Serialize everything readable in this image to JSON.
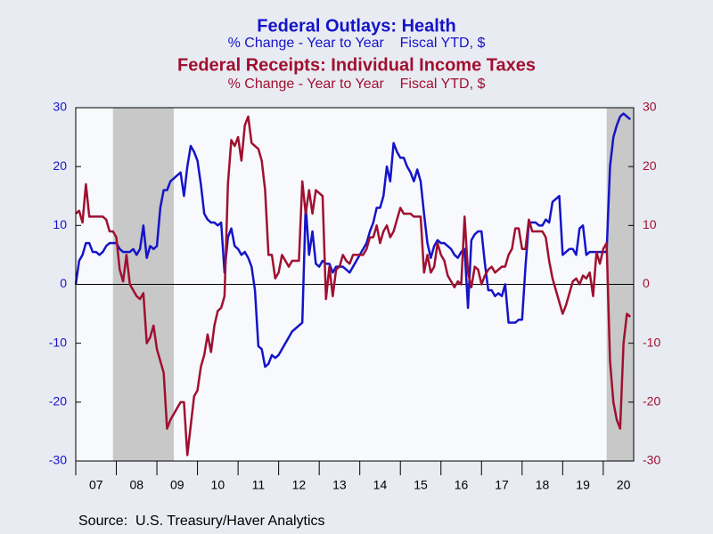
{
  "chart_data": {
    "type": "line",
    "series": [
      {
        "name": "Federal Outlays: Health",
        "units": "% Change - Year to Year    Fiscal YTD, $",
        "color": "#1414c8",
        "axis": "y",
        "values": [
          0,
          4,
          5,
          7,
          7,
          5.5,
          5.5,
          5,
          5.5,
          6.5,
          7,
          7,
          7,
          6,
          5.5,
          5.5,
          5.5,
          6,
          5,
          6,
          10,
          4.5,
          6.5,
          6,
          6.5,
          13,
          16,
          16,
          17.5,
          18,
          18.5,
          19,
          15,
          20,
          23.5,
          22.5,
          21,
          17,
          12,
          11,
          10.5,
          10.5,
          10,
          10.5,
          2,
          8,
          9.5,
          6.5,
          6,
          5,
          5.5,
          4.5,
          3,
          -1,
          -10.5,
          -11,
          -14,
          -13.5,
          -12,
          -12.5,
          -12,
          -11,
          -10,
          -9,
          -8,
          -7.5,
          -7,
          -6.5,
          13.5,
          5,
          9,
          3.5,
          3,
          4,
          3.5,
          3.5,
          2,
          3,
          3,
          3,
          2.5,
          2,
          3,
          4,
          5,
          6,
          7,
          9,
          10.5,
          13,
          13,
          15,
          20,
          17.5,
          24,
          22.5,
          21.5,
          21.5,
          20,
          19,
          17.5,
          19.5,
          17.5,
          12,
          7,
          4.5,
          6.5,
          7.5,
          7,
          7,
          6.5,
          6,
          5,
          4.5,
          5.5,
          6,
          -4,
          7.5,
          8.5,
          9,
          9,
          3.5,
          -1,
          -1,
          -2,
          -1.5,
          -2,
          0,
          -6.5,
          -6.5,
          -6.5,
          -6,
          -6,
          3,
          10.5,
          10.5,
          10.5,
          10,
          10,
          11,
          10.5,
          14,
          14.5,
          15,
          5,
          5.5,
          6,
          6,
          5,
          9.5,
          10,
          5,
          5.5,
          5.5,
          5.5,
          5.5,
          5.5,
          5.5,
          20,
          25,
          27,
          28.5,
          29,
          28.5,
          28
        ]
      },
      {
        "name": "Federal Receipts: Individual Income Taxes",
        "units": "% Change - Year to Year    Fiscal YTD, $",
        "color": "#a01030",
        "axis": "y2",
        "values": [
          12,
          12.5,
          10.5,
          17,
          11.5,
          11.5,
          11.5,
          11.5,
          11.5,
          11,
          9,
          9,
          8,
          2.5,
          0.5,
          5,
          0,
          -1,
          -2,
          -2.5,
          -1.5,
          -10,
          -9,
          -7,
          -11,
          -13,
          -15,
          -24.5,
          -23,
          -22,
          -21,
          -20,
          -20,
          -29,
          -24,
          -19,
          -18,
          -14,
          -12,
          -8.5,
          -11.5,
          -7,
          -4.5,
          -4,
          -2,
          17,
          24.5,
          23.5,
          25,
          21,
          27,
          28.5,
          24,
          23.5,
          23,
          21,
          16,
          5,
          5,
          1,
          2,
          5,
          4,
          3,
          4,
          4,
          4,
          17.5,
          12,
          16,
          12,
          16,
          15.5,
          15,
          -2.5,
          3,
          -2,
          2.5,
          3,
          5,
          4,
          3.5,
          5,
          5,
          5,
          5,
          6,
          8,
          8,
          10,
          7,
          9,
          10,
          8,
          9,
          11,
          13,
          12,
          12,
          12,
          11.5,
          11.5,
          11.5,
          2,
          5,
          2,
          3,
          7,
          5,
          4,
          1.5,
          0.5,
          -0.5,
          0.5,
          0,
          11.5,
          2,
          -0.5,
          3,
          2.5,
          0,
          1.5,
          2.5,
          3,
          2,
          2.5,
          3,
          3,
          5,
          6,
          9.5,
          9.5,
          6,
          6,
          11,
          9,
          9,
          9,
          9,
          8,
          4,
          1,
          -1,
          -3,
          -5,
          -3.5,
          -1.5,
          0.5,
          1,
          0,
          1.5,
          1,
          2,
          -2,
          5.5,
          3.5,
          6,
          7,
          -13,
          -20,
          -23,
          -24.5,
          -10,
          -5,
          -5.5
        ]
      }
    ],
    "x": [
      "2007-01",
      "2007-02",
      "2007-03",
      "2007-04",
      "2007-05",
      "2007-06",
      "2007-07",
      "2007-08",
      "2007-09",
      "2007-10",
      "2007-11",
      "2007-12",
      "2008-01",
      "2008-02",
      "2008-03",
      "2008-04",
      "2008-05",
      "2008-06",
      "2008-07",
      "2008-08",
      "2008-09",
      "2008-10",
      "2008-11",
      "2008-12",
      "2009-01",
      "2009-02",
      "2009-03",
      "2009-04",
      "2009-05",
      "2009-06",
      "2009-07",
      "2009-08",
      "2009-09",
      "2009-10",
      "2009-11",
      "2009-12",
      "2010-01",
      "2010-02",
      "2010-03",
      "2010-04",
      "2010-05",
      "2010-06",
      "2010-07",
      "2010-08",
      "2010-09",
      "2010-10",
      "2010-11",
      "2010-12",
      "2011-01",
      "2011-02",
      "2011-03",
      "2011-04",
      "2011-05",
      "2011-06",
      "2011-07",
      "2011-08",
      "2011-09",
      "2011-10",
      "2011-11",
      "2011-12",
      "2012-01",
      "2012-02",
      "2012-03",
      "2012-04",
      "2012-05",
      "2012-06",
      "2012-07",
      "2012-08",
      "2012-09",
      "2012-10",
      "2012-11",
      "2012-12",
      "2013-01",
      "2013-02",
      "2013-03",
      "2013-04",
      "2013-05",
      "2013-06",
      "2013-07",
      "2013-08",
      "2013-09",
      "2013-10",
      "2013-11",
      "2013-12",
      "2014-01",
      "2014-02",
      "2014-03",
      "2014-04",
      "2014-05",
      "2014-06",
      "2014-07",
      "2014-08",
      "2014-09",
      "2014-10",
      "2014-11",
      "2014-12",
      "2015-01",
      "2015-02",
      "2015-03",
      "2015-04",
      "2015-05",
      "2015-06",
      "2015-07",
      "2015-08",
      "2015-09",
      "2015-10",
      "2015-11",
      "2015-12",
      "2016-01",
      "2016-02",
      "2016-03",
      "2016-04",
      "2016-05",
      "2016-06",
      "2016-07",
      "2016-08",
      "2016-09",
      "2016-10",
      "2016-11",
      "2016-12",
      "2017-01",
      "2017-02",
      "2017-03",
      "2017-04",
      "2017-05",
      "2017-06",
      "2017-07",
      "2017-08",
      "2017-09",
      "2017-10",
      "2017-11",
      "2017-12",
      "2018-01",
      "2018-02",
      "2018-03",
      "2018-04",
      "2018-05",
      "2018-06",
      "2018-07",
      "2018-08",
      "2018-09",
      "2018-10",
      "2018-11",
      "2018-12",
      "2019-01",
      "2019-02",
      "2019-03",
      "2019-04",
      "2019-05",
      "2019-06",
      "2019-07",
      "2019-08",
      "2019-09",
      "2019-10",
      "2019-11",
      "2019-12",
      "2020-01",
      "2020-02",
      "2020-03",
      "2020-04",
      "2020-05",
      "2020-06",
      "2020-07",
      "2020-08",
      "2020-09"
    ],
    "xlim": [
      "2007-01",
      "2020-10"
    ],
    "xticks": [
      {
        "value": "2007",
        "label": "07"
      },
      {
        "value": "2008",
        "label": "08"
      },
      {
        "value": "2009",
        "label": "09"
      },
      {
        "value": "2010",
        "label": "10"
      },
      {
        "value": "2011",
        "label": "11"
      },
      {
        "value": "2012",
        "label": "12"
      },
      {
        "value": "2013",
        "label": "13"
      },
      {
        "value": "2014",
        "label": "14"
      },
      {
        "value": "2015",
        "label": "15"
      },
      {
        "value": "2016",
        "label": "16"
      },
      {
        "value": "2017",
        "label": "17"
      },
      {
        "value": "2018",
        "label": "18"
      },
      {
        "value": "2019",
        "label": "19"
      },
      {
        "value": "2020",
        "label": "20"
      }
    ],
    "ylim": [
      -30,
      30
    ],
    "yticks": [
      -30,
      -20,
      -10,
      0,
      10,
      20,
      30
    ],
    "y2lim": [
      -30,
      30
    ],
    "y2ticks": [
      -30,
      -20,
      -10,
      0,
      10,
      20,
      30
    ],
    "recessions": [
      {
        "start": "2007-12",
        "end": "2009-06"
      },
      {
        "start": "2020-02",
        "end": "2020-10"
      }
    ],
    "source": "Source:  U.S. Treasury/Haver Analytics"
  }
}
